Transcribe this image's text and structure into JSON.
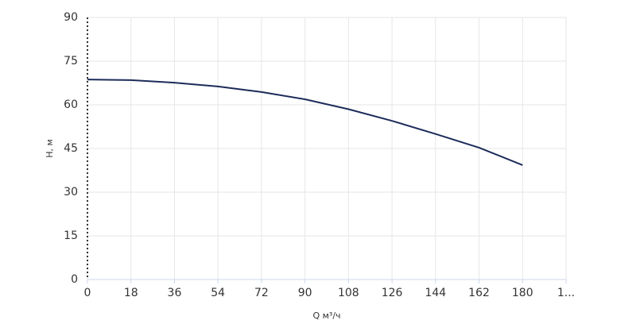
{
  "chart_data": {
    "type": "line",
    "x_label": "Q м³/ч",
    "y_label": "H, м",
    "x": [
      0,
      18,
      36,
      54,
      72,
      90,
      108,
      126,
      144,
      162,
      180
    ],
    "series": [
      {
        "color": "#1c2b5a",
        "values": [
          68.7,
          68.5,
          67.6,
          66.3,
          64.4,
          61.9,
          58.5,
          54.5,
          50,
          45.3,
          39.3
        ]
      }
    ],
    "xlim": [
      0,
      198
    ],
    "xticks": [
      0,
      18,
      36,
      54,
      72,
      90,
      108,
      126,
      144,
      162,
      180,
      {
        "value": 198,
        "label": "1..."
      }
    ],
    "ylim": [
      0,
      90
    ],
    "yticks": [
      0,
      15,
      30,
      45,
      60,
      75,
      90
    ],
    "grid": true
  }
}
